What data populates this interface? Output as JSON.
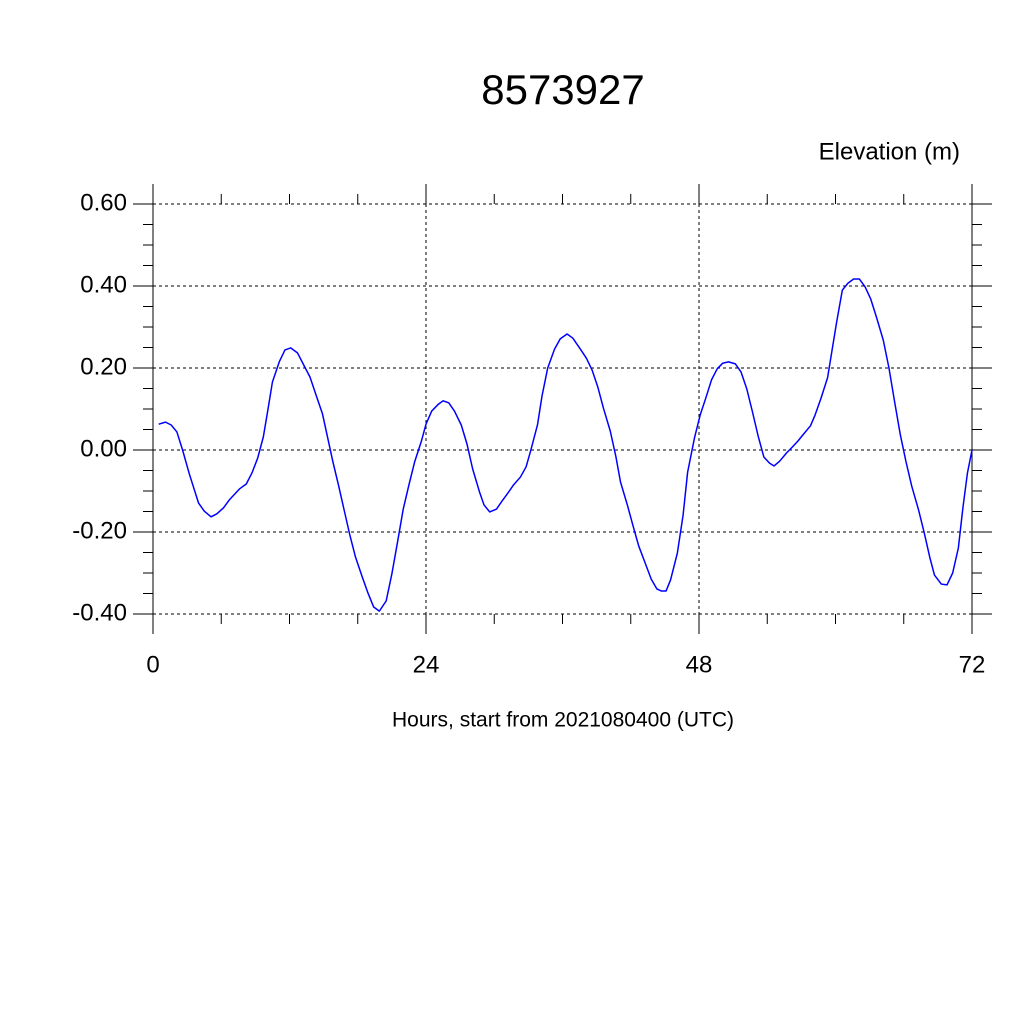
{
  "chart_data": {
    "type": "line",
    "title": "8573927",
    "y_label": "Elevation (m)",
    "x_label": "Hours, start from 2021080400 (UTC)",
    "color": "#0000ff",
    "grid": true,
    "xlim": [
      0,
      72
    ],
    "xticks": [
      0,
      24,
      48,
      72
    ],
    "ylim": [
      -0.4,
      0.6
    ],
    "yticks": [
      {
        "value": -0.4,
        "label": "-0.40"
      },
      {
        "value": -0.2,
        "label": "-0.20"
      },
      {
        "value": 0,
        "label": "0.00"
      },
      {
        "value": 0.2,
        "label": "0.20"
      },
      {
        "value": 0.4,
        "label": "0.40"
      },
      {
        "value": 0.6,
        "label": "0.60"
      }
    ],
    "x": [
      0.5,
      1.1,
      1.6,
      2.1,
      2.6,
      3.2,
      4.0,
      4.5,
      5.1,
      5.6,
      6.2,
      6.7,
      7.6,
      8.2,
      8.7,
      9.2,
      9.7,
      10.1,
      10.5,
      11.1,
      11.6,
      12.1,
      12.7,
      13.2,
      13.8,
      14.3,
      14.9,
      15.3,
      15.8,
      16.3,
      16.8,
      17.3,
      17.8,
      18.4,
      18.9,
      19.4,
      19.9,
      20.5,
      21.0,
      21.5,
      22.0,
      22.5,
      23.0,
      23.6,
      24.0,
      24.5,
      25.1,
      25.5,
      26.0,
      26.5,
      27.1,
      27.6,
      28.1,
      28.7,
      29.1,
      29.6,
      30.2,
      30.7,
      31.2,
      31.7,
      32.3,
      32.8,
      33.2,
      33.8,
      34.2,
      34.7,
      35.3,
      35.8,
      36.4,
      36.9,
      37.5,
      38.1,
      38.6,
      39.1,
      39.6,
      40.2,
      40.7,
      41.1,
      41.7,
      42.2,
      42.7,
      43.3,
      43.8,
      44.3,
      44.7,
      45.1,
      45.5,
      46.1,
      46.6,
      47.0,
      47.6,
      48.1,
      48.6,
      49.1,
      49.6,
      50.1,
      50.6,
      51.2,
      51.7,
      52.2,
      52.7,
      53.2,
      53.7,
      54.2,
      54.6,
      55.1,
      55.7,
      56.2,
      56.7,
      57.2,
      57.8,
      58.2,
      58.7,
      59.3,
      59.7,
      60.1,
      60.6,
      61.1,
      61.6,
      62.1,
      62.6,
      63.1,
      63.6,
      64.2,
      64.7,
      65.2,
      65.7,
      66.2,
      66.7,
      67.3,
      67.8,
      68.3,
      68.7,
      69.3,
      69.8,
      70.3,
      70.8,
      71.2,
      71.6,
      72.0
    ],
    "values": [
      0.063,
      0.068,
      0.061,
      0.044,
      0,
      -0.059,
      -0.129,
      -0.149,
      -0.163,
      -0.156,
      -0.141,
      -0.122,
      -0.095,
      -0.083,
      -0.056,
      -0.02,
      0.032,
      0.098,
      0.166,
      0.215,
      0.244,
      0.249,
      0.237,
      0.21,
      0.178,
      0.137,
      0.088,
      0.037,
      -0.027,
      -0.085,
      -0.146,
      -0.207,
      -0.261,
      -0.31,
      -0.349,
      -0.383,
      -0.393,
      -0.368,
      -0.302,
      -0.224,
      -0.144,
      -0.085,
      -0.029,
      0.022,
      0.063,
      0.095,
      0.112,
      0.12,
      0.115,
      0.095,
      0.061,
      0.015,
      -0.046,
      -0.102,
      -0.134,
      -0.151,
      -0.144,
      -0.124,
      -0.105,
      -0.085,
      -0.066,
      -0.041,
      -0.002,
      0.061,
      0.132,
      0.2,
      0.246,
      0.271,
      0.283,
      0.273,
      0.249,
      0.224,
      0.195,
      0.154,
      0.102,
      0.046,
      -0.017,
      -0.078,
      -0.134,
      -0.185,
      -0.234,
      -0.278,
      -0.315,
      -0.339,
      -0.344,
      -0.344,
      -0.317,
      -0.251,
      -0.159,
      -0.054,
      0.029,
      0.085,
      0.127,
      0.171,
      0.198,
      0.212,
      0.215,
      0.21,
      0.19,
      0.149,
      0.093,
      0.034,
      -0.017,
      -0.032,
      -0.039,
      -0.027,
      -0.007,
      0.007,
      0.022,
      0.039,
      0.059,
      0.085,
      0.124,
      0.176,
      0.244,
      0.312,
      0.39,
      0.407,
      0.417,
      0.417,
      0.398,
      0.368,
      0.324,
      0.268,
      0.2,
      0.117,
      0.037,
      -0.029,
      -0.088,
      -0.146,
      -0.202,
      -0.263,
      -0.305,
      -0.327,
      -0.329,
      -0.3,
      -0.239,
      -0.141,
      -0.056,
      0
    ]
  }
}
